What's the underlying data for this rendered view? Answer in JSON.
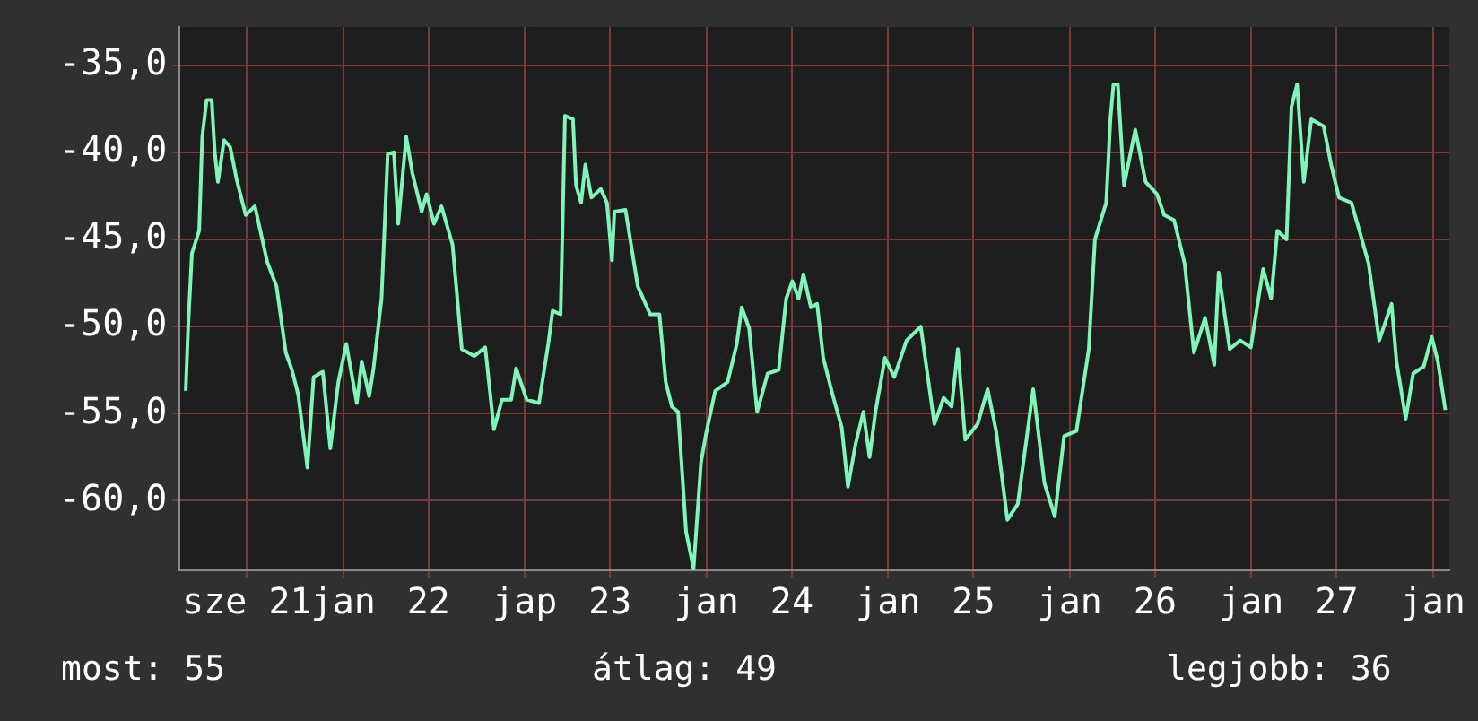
{
  "chart_data": {
    "type": "line",
    "x": [
      20.663,
      20.676,
      20.697,
      20.737,
      20.754,
      20.778,
      20.806,
      20.823,
      20.84,
      20.874,
      20.908,
      20.942,
      20.993,
      21.044,
      21.112,
      21.163,
      21.214,
      21.248,
      21.282,
      21.333,
      21.367,
      21.418,
      21.459,
      21.503,
      21.547,
      21.605,
      21.632,
      21.673,
      21.697,
      21.741,
      21.775,
      21.809,
      21.833,
      21.877,
      21.911,
      21.962,
      21.989,
      22.03,
      22.071,
      22.132,
      22.183,
      22.251,
      22.312,
      22.36,
      22.404,
      22.455,
      22.482,
      22.54,
      22.608,
      22.659,
      22.683,
      22.727,
      22.751,
      22.795,
      22.812,
      22.84,
      22.863,
      22.897,
      22.948,
      22.982,
      23.01,
      23.023,
      23.084,
      23.152,
      23.22,
      23.271,
      23.306,
      23.34,
      23.374,
      23.418,
      23.459,
      23.5,
      23.527,
      23.578,
      23.646,
      23.697,
      23.724,
      23.765,
      23.809,
      23.867,
      23.928,
      23.969,
      24.003,
      24.037,
      24.064,
      24.105,
      24.139,
      24.173,
      24.224,
      24.275,
      24.309,
      24.35,
      24.394,
      24.428,
      24.462,
      24.513,
      24.564,
      24.632,
      24.71,
      24.785,
      24.836,
      24.88,
      24.914,
      24.955,
      25.023,
      25.078,
      25.125,
      25.187,
      25.244,
      25.329,
      25.391,
      25.448,
      25.499,
      25.567,
      25.635,
      25.669,
      25.731,
      25.754,
      25.771,
      25.795,
      25.829,
      25.891,
      25.948,
      26.01,
      26.05,
      26.105,
      26.163,
      26.214,
      26.275,
      26.326,
      26.35,
      26.411,
      26.469,
      26.527,
      26.595,
      26.639,
      26.673,
      26.724,
      26.751,
      26.782,
      26.819,
      26.86,
      26.928,
      26.969,
      27.013,
      27.081,
      27.125,
      27.176,
      27.234,
      27.302,
      27.329,
      27.38,
      27.421,
      27.479,
      27.523,
      27.557,
      27.598
    ],
    "series": [
      {
        "color": "#7ff5b7",
        "values": [
          -53.7,
          -50.1,
          -45.8,
          -44.5,
          -39.1,
          -37.0,
          -37.0,
          -40.0,
          -41.7,
          -39.3,
          -39.7,
          -41.5,
          -43.6,
          -43.1,
          -46.3,
          -47.7,
          -51.5,
          -52.5,
          -53.9,
          -58.1,
          -52.9,
          -52.6,
          -57.0,
          -53.2,
          -51.0,
          -54.4,
          -52.0,
          -54.0,
          -52.4,
          -48.4,
          -40.1,
          -40.0,
          -44.1,
          -39.1,
          -41.2,
          -43.4,
          -42.4,
          -44.1,
          -43.1,
          -45.3,
          -51.3,
          -51.7,
          -51.2,
          -55.9,
          -54.2,
          -54.2,
          -52.4,
          -54.2,
          -54.4,
          -51.0,
          -49.1,
          -49.3,
          -37.9,
          -38.1,
          -41.9,
          -42.9,
          -40.7,
          -42.6,
          -42.1,
          -42.9,
          -46.2,
          -43.4,
          -43.3,
          -47.7,
          -49.3,
          -49.3,
          -53.2,
          -54.6,
          -54.9,
          -61.8,
          -63.9,
          -57.8,
          -56.2,
          -53.7,
          -53.2,
          -51.0,
          -48.9,
          -50.1,
          -54.9,
          -52.7,
          -52.5,
          -48.4,
          -47.4,
          -48.4,
          -47.0,
          -48.9,
          -48.7,
          -51.8,
          -53.9,
          -55.8,
          -59.2,
          -56.8,
          -54.9,
          -57.5,
          -54.8,
          -51.8,
          -52.9,
          -50.8,
          -50.0,
          -55.6,
          -54.1,
          -54.6,
          -51.3,
          -56.5,
          -55.6,
          -53.6,
          -56.0,
          -61.1,
          -60.2,
          -53.6,
          -59.0,
          -60.9,
          -56.3,
          -56.0,
          -51.3,
          -45.0,
          -42.9,
          -38.1,
          -36.1,
          -36.1,
          -41.9,
          -38.7,
          -41.7,
          -42.4,
          -43.6,
          -43.9,
          -46.4,
          -51.5,
          -49.5,
          -52.2,
          -46.9,
          -51.3,
          -50.8,
          -51.2,
          -46.7,
          -48.4,
          -44.5,
          -45.0,
          -37.4,
          -36.1,
          -41.7,
          -38.1,
          -38.5,
          -40.7,
          -42.6,
          -42.9,
          -44.5,
          -46.4,
          -50.8,
          -48.7,
          -52.0,
          -55.3,
          -52.7,
          -52.3,
          -50.6,
          -52.0,
          -54.8
        ]
      }
    ],
    "xlim": [
      20.63,
      27.62
    ],
    "xticks": [
      {
        "value": 21,
        "label": "sze 21"
      },
      {
        "value": 21.53,
        "label": "jan"
      },
      22,
      {
        "value": 22.53,
        "label": "jap"
      },
      23,
      {
        "value": 23.53,
        "label": "jan"
      },
      24,
      {
        "value": 24.53,
        "label": "jan"
      },
      25,
      {
        "value": 25.53,
        "label": "jan"
      },
      26,
      {
        "value": 26.53,
        "label": "jan"
      },
      27,
      {
        "value": 27.53,
        "label": "jan"
      }
    ],
    "ylim": [
      -64.0,
      -32.8
    ],
    "yticks": [
      {
        "value": -60,
        "label": "-60,0"
      },
      {
        "value": -55,
        "label": "-55,0"
      },
      {
        "value": -50,
        "label": "-50,0"
      },
      {
        "value": -45,
        "label": "-45,0"
      },
      {
        "value": -40,
        "label": "-40,0"
      },
      {
        "value": -35,
        "label": "-35,0"
      }
    ],
    "grid": true,
    "legend": false,
    "marker": "none",
    "line_style": "solid",
    "annotations": [
      "most: 55",
      "átlag: 49",
      "legjobb: 36"
    ]
  }
}
